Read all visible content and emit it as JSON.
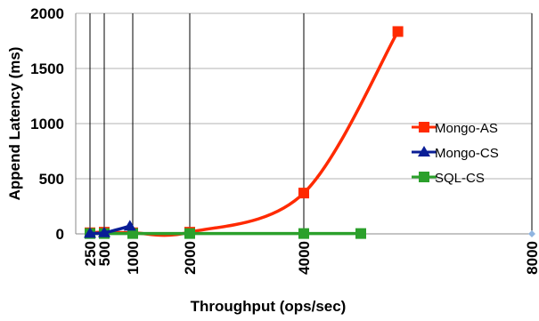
{
  "chart_data": {
    "type": "line",
    "xlabel": "Throughput (ops/sec)",
    "ylabel": "Append Latency (ms)",
    "ylim": [
      0,
      2000
    ],
    "xlim": [
      0,
      8000
    ],
    "x_ticks": [
      "250",
      "500",
      "1000",
      "2000",
      "4000",
      "8000"
    ],
    "y_ticks": [
      "0",
      "500",
      "1000",
      "1500",
      "2000"
    ],
    "grid": "vertical lines at x tick values",
    "legend_position": "right",
    "series": [
      {
        "name": "Mongo-AS",
        "color": "#ff2a00",
        "marker": "square",
        "x": [
          250,
          500,
          1000,
          2000,
          4000,
          5650
        ],
        "y": [
          10,
          15,
          10,
          15,
          370,
          1835
        ]
      },
      {
        "name": "Mongo-CS",
        "color": "#0a1e96",
        "marker": "triangle",
        "x": [
          250,
          500,
          950
        ],
        "y": [
          5,
          10,
          70
        ]
      },
      {
        "name": "SQL-CS",
        "color": "#2ba02b",
        "marker": "square",
        "x": [
          250,
          500,
          1000,
          2000,
          4000,
          5000
        ],
        "y": [
          3,
          3,
          3,
          3,
          3,
          3
        ]
      }
    ],
    "extra_points": [
      {
        "x": 8000,
        "y": 0,
        "color": "#8fb4e0",
        "marker": "diamond"
      }
    ]
  }
}
